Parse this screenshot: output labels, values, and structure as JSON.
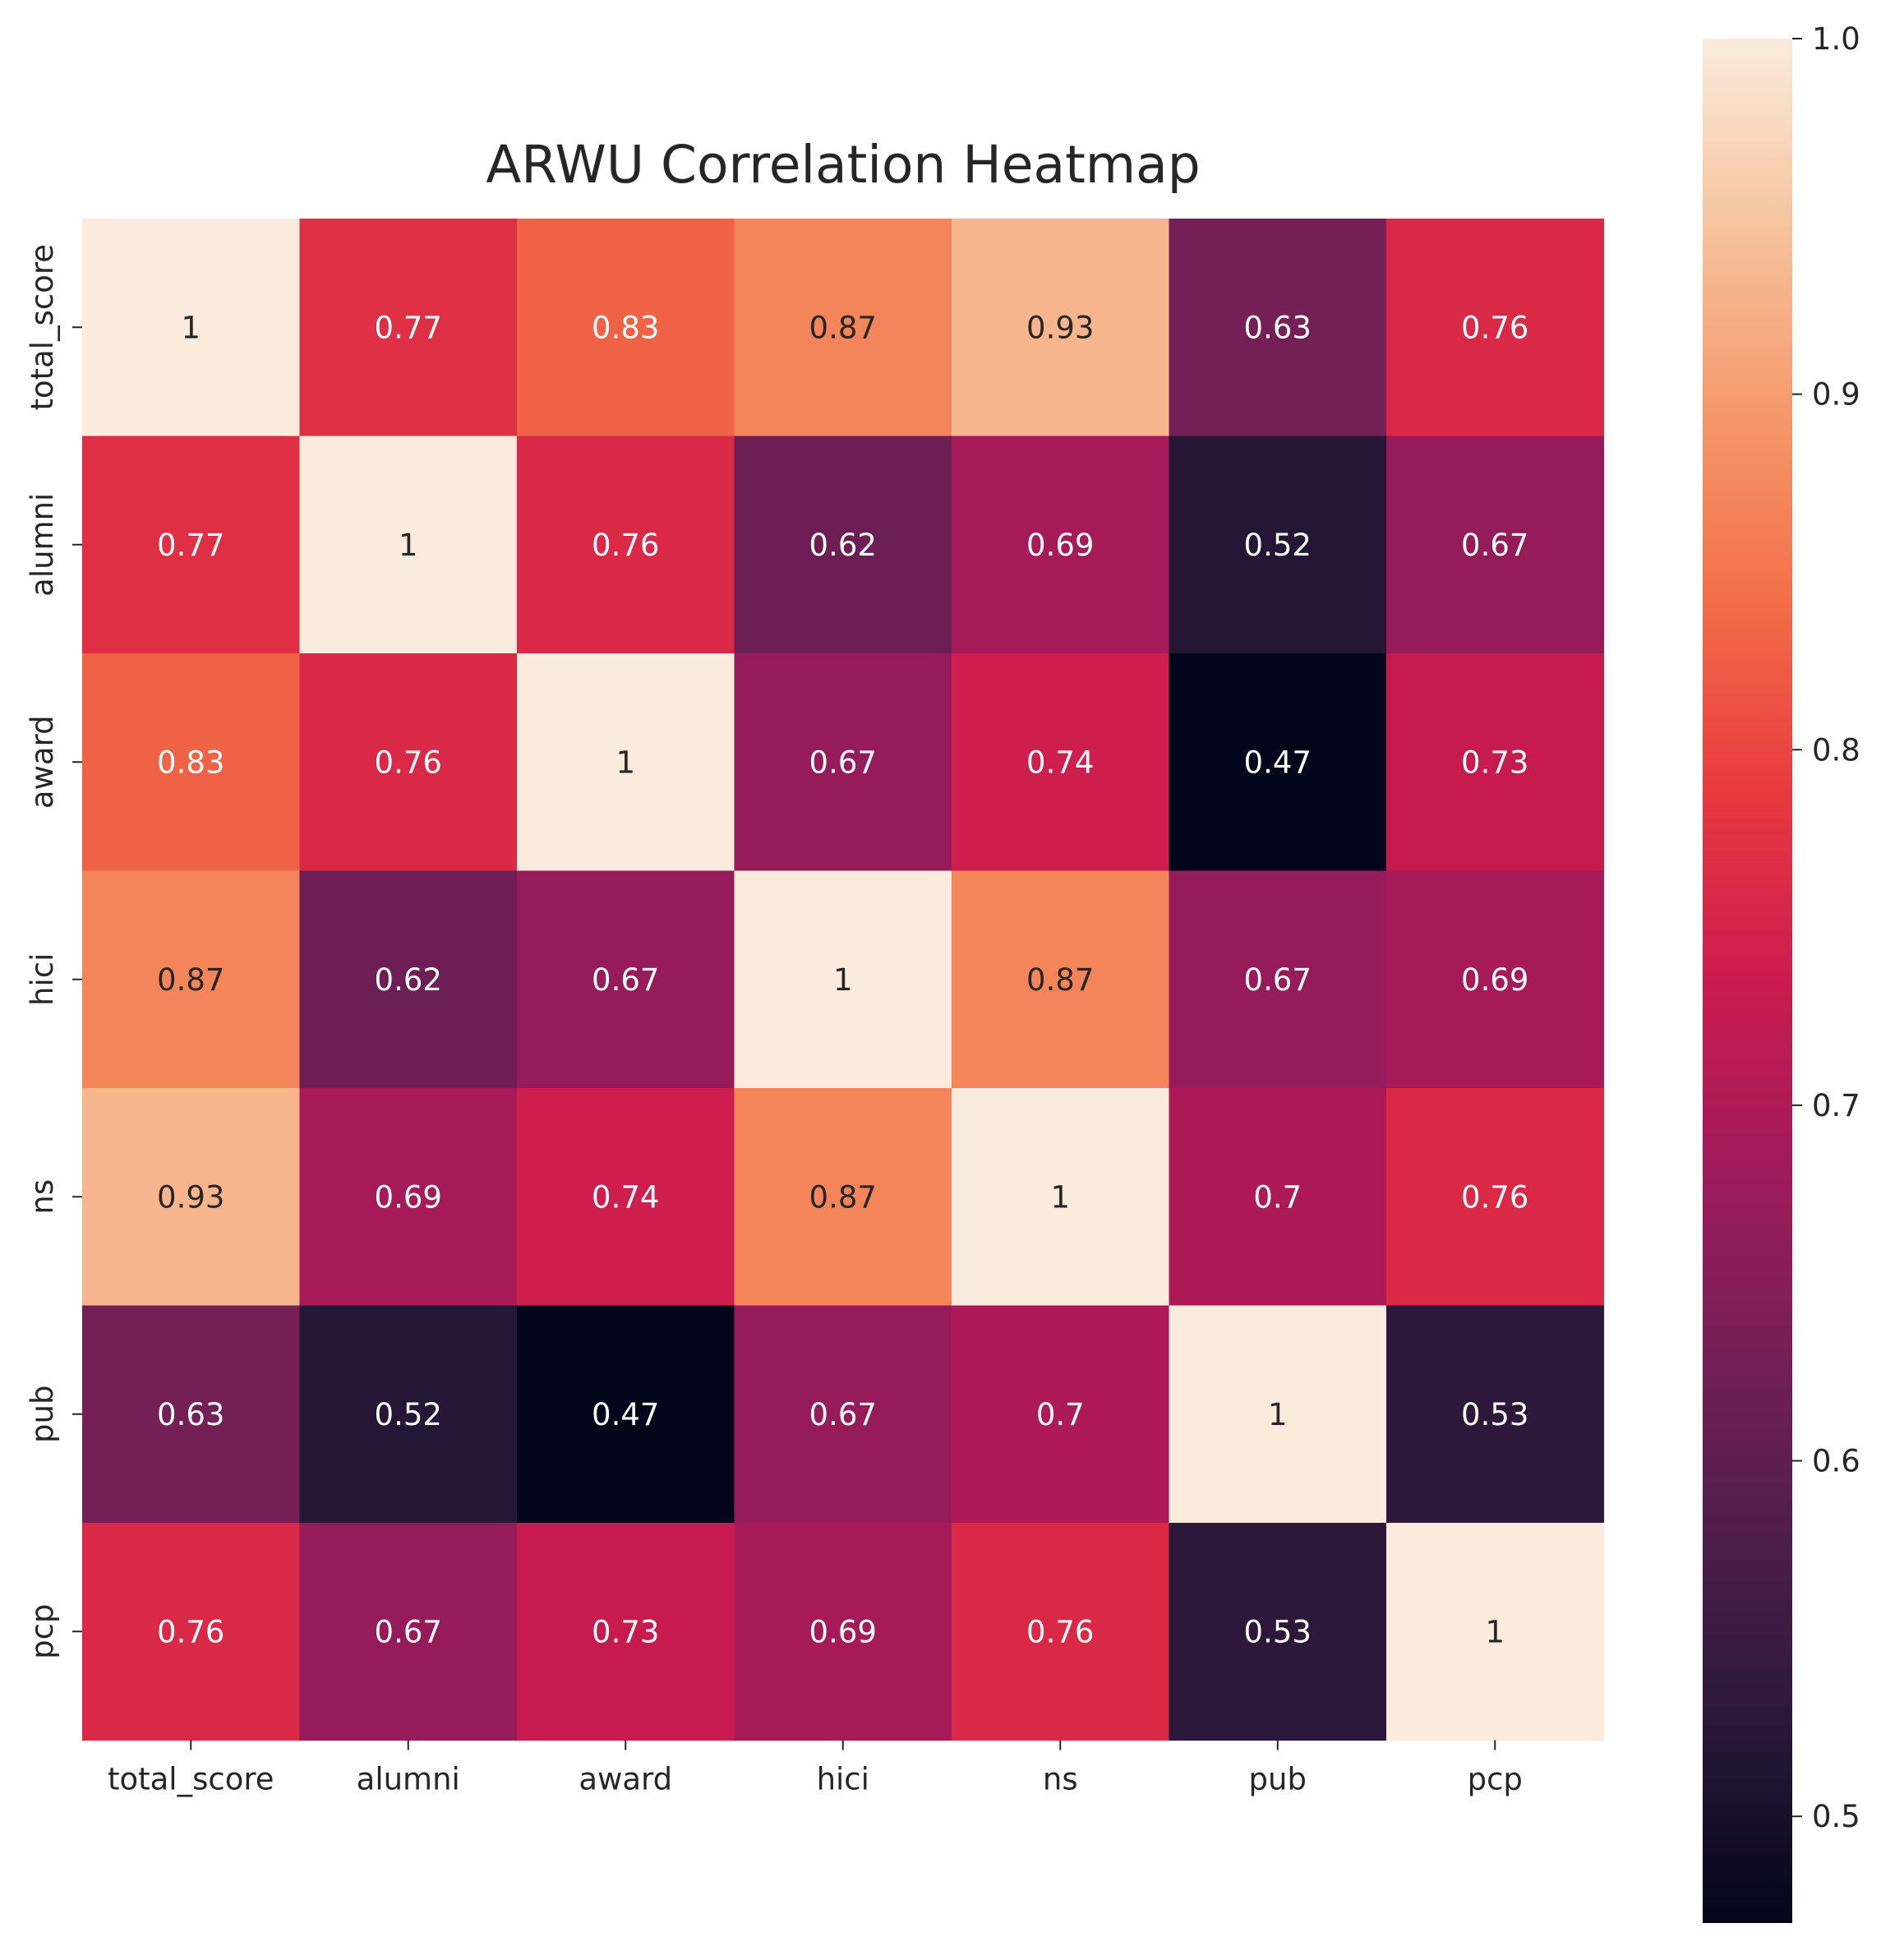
{
  "chart_data": {
    "type": "heatmap",
    "title": "ARWU Correlation Heatmap",
    "xlabel": "",
    "ylabel": "",
    "x_categories": [
      "total_score",
      "alumni",
      "award",
      "hici",
      "ns",
      "pub",
      "pcp"
    ],
    "y_categories": [
      "total_score",
      "alumni",
      "award",
      "hici",
      "ns",
      "pub",
      "pcp"
    ],
    "values": [
      [
        1,
        0.77,
        0.83,
        0.87,
        0.93,
        0.63,
        0.76
      ],
      [
        0.77,
        1,
        0.76,
        0.62,
        0.69,
        0.52,
        0.67
      ],
      [
        0.83,
        0.76,
        1,
        0.67,
        0.74,
        0.47,
        0.73
      ],
      [
        0.87,
        0.62,
        0.67,
        1,
        0.87,
        0.67,
        0.69
      ],
      [
        0.93,
        0.69,
        0.74,
        0.87,
        1,
        0.7,
        0.76
      ],
      [
        0.63,
        0.52,
        0.47,
        0.67,
        0.7,
        1,
        0.53
      ],
      [
        0.76,
        0.67,
        0.73,
        0.69,
        0.76,
        0.53,
        1
      ]
    ],
    "annotations": [
      [
        "1",
        "0.77",
        "0.83",
        "0.87",
        "0.93",
        "0.63",
        "0.76"
      ],
      [
        "0.77",
        "1",
        "0.76",
        "0.62",
        "0.69",
        "0.52",
        "0.67"
      ],
      [
        "0.83",
        "0.76",
        "1",
        "0.67",
        "0.74",
        "0.47",
        "0.73"
      ],
      [
        "0.87",
        "0.62",
        "0.67",
        "1",
        "0.87",
        "0.67",
        "0.69"
      ],
      [
        "0.93",
        "0.69",
        "0.74",
        "0.87",
        "1",
        "0.7",
        "0.76"
      ],
      [
        "0.63",
        "0.52",
        "0.47",
        "0.67",
        "0.7",
        "1",
        "0.53"
      ],
      [
        "0.76",
        "0.67",
        "0.73",
        "0.69",
        "0.76",
        "0.53",
        "1"
      ]
    ],
    "colorbar": {
      "range": [
        0.47,
        1.0
      ],
      "ticks": [
        0.5,
        0.6,
        0.7,
        0.8,
        0.9,
        1.0
      ],
      "tick_labels": [
        "0.5",
        "0.6",
        "0.7",
        "0.8",
        "0.9",
        "1.0"
      ],
      "colormap": "rocket"
    },
    "grid": false,
    "legend": "colorbar-right"
  }
}
